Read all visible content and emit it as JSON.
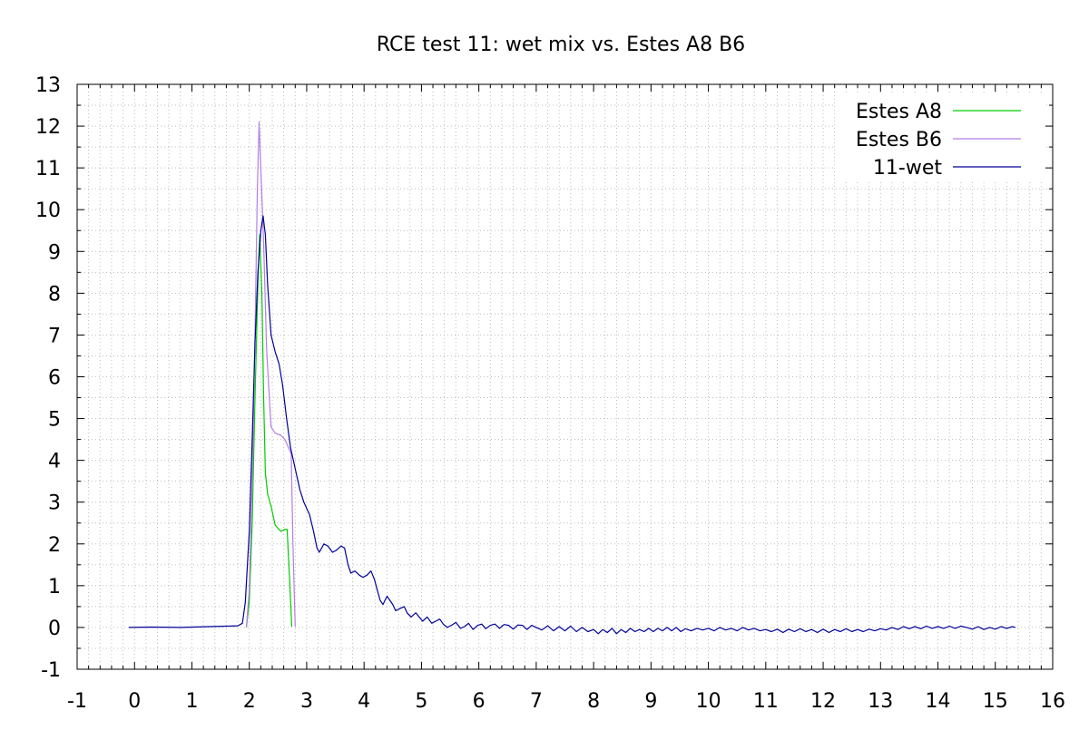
{
  "chart_data": {
    "type": "line",
    "title": "RCE test 11: wet mix vs. Estes A8  B6",
    "xlabel": "",
    "ylabel": "",
    "xlim": [
      -1,
      16
    ],
    "ylim": [
      -1,
      13
    ],
    "x_ticks": [
      -1,
      0,
      1,
      2,
      3,
      4,
      5,
      6,
      7,
      8,
      9,
      10,
      11,
      12,
      13,
      14,
      15,
      16
    ],
    "y_ticks": [
      -1,
      0,
      1,
      2,
      3,
      4,
      5,
      6,
      7,
      8,
      9,
      10,
      11,
      12,
      13
    ],
    "grid": true,
    "legend_position": "top-right",
    "series": [
      {
        "name": "Estes A8",
        "color": "#00cc00",
        "points": [
          [
            1.95,
            0
          ],
          [
            2.0,
            0.6
          ],
          [
            2.05,
            2.5
          ],
          [
            2.1,
            5.5
          ],
          [
            2.15,
            8.2
          ],
          [
            2.18,
            9.4
          ],
          [
            2.22,
            8.0
          ],
          [
            2.25,
            5.5
          ],
          [
            2.28,
            3.7
          ],
          [
            2.32,
            3.2
          ],
          [
            2.38,
            2.9
          ],
          [
            2.45,
            2.45
          ],
          [
            2.55,
            2.3
          ],
          [
            2.62,
            2.35
          ],
          [
            2.66,
            2.35
          ],
          [
            2.7,
            1.2
          ],
          [
            2.74,
            0.02
          ]
        ]
      },
      {
        "name": "Estes B6",
        "color": "#b57ee5",
        "points": [
          [
            1.95,
            0
          ],
          [
            2.0,
            0.9
          ],
          [
            2.05,
            3.5
          ],
          [
            2.1,
            7.0
          ],
          [
            2.14,
            10.5
          ],
          [
            2.17,
            12.1
          ],
          [
            2.2,
            11.0
          ],
          [
            2.25,
            9.2
          ],
          [
            2.3,
            6.7
          ],
          [
            2.35,
            5.5
          ],
          [
            2.38,
            4.8
          ],
          [
            2.45,
            4.65
          ],
          [
            2.55,
            4.6
          ],
          [
            2.62,
            4.5
          ],
          [
            2.7,
            4.25
          ],
          [
            2.73,
            4.15
          ],
          [
            2.76,
            2.0
          ],
          [
            2.8,
            0.02
          ]
        ]
      },
      {
        "name": "11-wet",
        "color": "#000099",
        "points": [
          [
            -0.1,
            0.0
          ],
          [
            0.3,
            0.01
          ],
          [
            0.8,
            0.0
          ],
          [
            1.3,
            0.02
          ],
          [
            1.6,
            0.03
          ],
          [
            1.8,
            0.04
          ],
          [
            1.88,
            0.1
          ],
          [
            1.93,
            0.6
          ],
          [
            2.0,
            2.3
          ],
          [
            2.05,
            4.5
          ],
          [
            2.1,
            6.8
          ],
          [
            2.15,
            8.5
          ],
          [
            2.2,
            9.5
          ],
          [
            2.24,
            9.85
          ],
          [
            2.28,
            9.4
          ],
          [
            2.32,
            8.2
          ],
          [
            2.38,
            7.0
          ],
          [
            2.45,
            6.6
          ],
          [
            2.52,
            6.3
          ],
          [
            2.58,
            5.8
          ],
          [
            2.65,
            5.0
          ],
          [
            2.72,
            4.3
          ],
          [
            2.8,
            3.8
          ],
          [
            2.88,
            3.3
          ],
          [
            2.95,
            3.0
          ],
          [
            3.05,
            2.7
          ],
          [
            3.12,
            2.3
          ],
          [
            3.18,
            1.9
          ],
          [
            3.22,
            1.8
          ],
          [
            3.3,
            2.0
          ],
          [
            3.37,
            1.95
          ],
          [
            3.45,
            1.8
          ],
          [
            3.52,
            1.85
          ],
          [
            3.6,
            1.95
          ],
          [
            3.66,
            1.9
          ],
          [
            3.72,
            1.5
          ],
          [
            3.77,
            1.3
          ],
          [
            3.84,
            1.35
          ],
          [
            3.92,
            1.25
          ],
          [
            3.98,
            1.2
          ],
          [
            4.05,
            1.25
          ],
          [
            4.12,
            1.35
          ],
          [
            4.18,
            1.15
          ],
          [
            4.23,
            0.9
          ],
          [
            4.28,
            0.65
          ],
          [
            4.33,
            0.55
          ],
          [
            4.4,
            0.75
          ],
          [
            4.45,
            0.65
          ],
          [
            4.5,
            0.55
          ],
          [
            4.55,
            0.4
          ],
          [
            4.62,
            0.45
          ],
          [
            4.7,
            0.5
          ],
          [
            4.75,
            0.35
          ],
          [
            4.82,
            0.25
          ],
          [
            4.9,
            0.35
          ],
          [
            4.96,
            0.25
          ],
          [
            5.02,
            0.15
          ],
          [
            5.1,
            0.25
          ],
          [
            5.18,
            0.1
          ],
          [
            5.25,
            0.15
          ],
          [
            5.32,
            0.2
          ],
          [
            5.38,
            0.08
          ],
          [
            5.45,
            0.0
          ],
          [
            5.52,
            0.05
          ],
          [
            5.6,
            0.12
          ],
          [
            5.68,
            -0.02
          ],
          [
            5.75,
            0.02
          ],
          [
            5.82,
            0.1
          ],
          [
            5.9,
            -0.05
          ],
          [
            5.98,
            0.05
          ],
          [
            6.05,
            0.08
          ],
          [
            6.12,
            -0.03
          ],
          [
            6.2,
            0.05
          ],
          [
            6.28,
            0.08
          ],
          [
            6.36,
            -0.02
          ],
          [
            6.44,
            0.07
          ],
          [
            6.52,
            0.05
          ],
          [
            6.6,
            -0.04
          ],
          [
            6.68,
            0.06
          ],
          [
            6.76,
            0.05
          ],
          [
            6.84,
            -0.05
          ],
          [
            6.92,
            0.05
          ],
          [
            7.0,
            0.0
          ],
          [
            7.1,
            -0.06
          ],
          [
            7.2,
            0.04
          ],
          [
            7.3,
            -0.08
          ],
          [
            7.4,
            0.02
          ],
          [
            7.5,
            -0.08
          ],
          [
            7.6,
            0.03
          ],
          [
            7.7,
            -0.1
          ],
          [
            7.8,
            0.0
          ],
          [
            7.9,
            -0.1
          ],
          [
            8.0,
            -0.05
          ],
          [
            8.08,
            -0.15
          ],
          [
            8.16,
            -0.05
          ],
          [
            8.24,
            -0.12
          ],
          [
            8.32,
            -0.02
          ],
          [
            8.4,
            -0.15
          ],
          [
            8.48,
            -0.05
          ],
          [
            8.56,
            -0.12
          ],
          [
            8.64,
            -0.02
          ],
          [
            8.72,
            -0.1
          ],
          [
            8.8,
            -0.05
          ],
          [
            8.88,
            -0.1
          ],
          [
            8.96,
            -0.02
          ],
          [
            9.04,
            -0.1
          ],
          [
            9.12,
            -0.02
          ],
          [
            9.2,
            -0.08
          ],
          [
            9.28,
            0.0
          ],
          [
            9.36,
            -0.08
          ],
          [
            9.44,
            0.0
          ],
          [
            9.52,
            -0.1
          ],
          [
            9.6,
            -0.03
          ],
          [
            9.7,
            -0.08
          ],
          [
            9.8,
            -0.02
          ],
          [
            9.9,
            -0.06
          ],
          [
            10.0,
            -0.02
          ],
          [
            10.1,
            -0.08
          ],
          [
            10.2,
            0.0
          ],
          [
            10.3,
            -0.06
          ],
          [
            10.4,
            -0.02
          ],
          [
            10.5,
            -0.08
          ],
          [
            10.6,
            0.0
          ],
          [
            10.7,
            -0.06
          ],
          [
            10.8,
            -0.02
          ],
          [
            10.9,
            -0.08
          ],
          [
            11.0,
            -0.05
          ],
          [
            11.1,
            -0.1
          ],
          [
            11.2,
            -0.04
          ],
          [
            11.3,
            -0.12
          ],
          [
            11.4,
            -0.04
          ],
          [
            11.5,
            -0.1
          ],
          [
            11.6,
            -0.03
          ],
          [
            11.7,
            -0.1
          ],
          [
            11.8,
            -0.05
          ],
          [
            11.9,
            -0.12
          ],
          [
            12.0,
            -0.04
          ],
          [
            12.1,
            -0.12
          ],
          [
            12.2,
            -0.05
          ],
          [
            12.3,
            -0.1
          ],
          [
            12.4,
            -0.03
          ],
          [
            12.5,
            -0.1
          ],
          [
            12.6,
            -0.05
          ],
          [
            12.7,
            -0.1
          ],
          [
            12.8,
            -0.04
          ],
          [
            12.9,
            -0.08
          ],
          [
            13.0,
            -0.03
          ],
          [
            13.1,
            -0.06
          ],
          [
            13.2,
            0.0
          ],
          [
            13.3,
            -0.05
          ],
          [
            13.4,
            0.02
          ],
          [
            13.5,
            -0.03
          ],
          [
            13.6,
            0.02
          ],
          [
            13.7,
            -0.03
          ],
          [
            13.8,
            0.03
          ],
          [
            13.9,
            -0.02
          ],
          [
            14.0,
            0.02
          ],
          [
            14.1,
            -0.02
          ],
          [
            14.2,
            0.03
          ],
          [
            14.3,
            -0.02
          ],
          [
            14.4,
            0.03
          ],
          [
            14.5,
            0.0
          ],
          [
            14.6,
            -0.04
          ],
          [
            14.7,
            0.02
          ],
          [
            14.8,
            -0.05
          ],
          [
            14.9,
            0.0
          ],
          [
            15.0,
            -0.04
          ],
          [
            15.1,
            0.02
          ],
          [
            15.2,
            -0.02
          ],
          [
            15.3,
            0.02
          ],
          [
            15.35,
            0.0
          ]
        ]
      }
    ]
  }
}
